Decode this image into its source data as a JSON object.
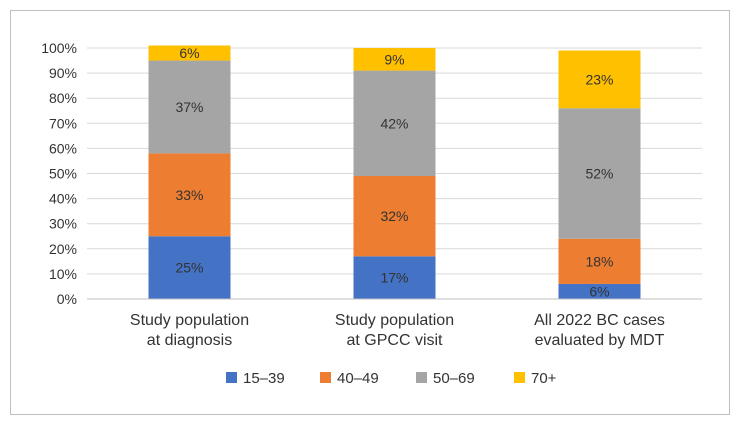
{
  "chart_data": {
    "type": "bar",
    "stacked": true,
    "percent_stacked": true,
    "title": "",
    "xlabel": "",
    "ylabel": "",
    "ylim": [
      0,
      100
    ],
    "grid": true,
    "yticks": [
      "0%",
      "10%",
      "20%",
      "30%",
      "40%",
      "50%",
      "60%",
      "70%",
      "80%",
      "90%",
      "100%"
    ],
    "categories": [
      [
        "Study population",
        "at diagnosis"
      ],
      [
        "Study population",
        "at GPCC visit"
      ],
      [
        "All 2022 BC cases",
        "evaluated by MDT"
      ]
    ],
    "series": [
      {
        "name": "15–39",
        "color": "#4472c4",
        "values": [
          25,
          17,
          6
        ],
        "labels": [
          "25%",
          "17%",
          "6%"
        ]
      },
      {
        "name": "40–49",
        "color": "#ed7d31",
        "values": [
          33,
          32,
          18
        ],
        "labels": [
          "33%",
          "32%",
          "18%"
        ]
      },
      {
        "name": "50–69",
        "color": "#a5a5a5",
        "values": [
          37,
          42,
          52
        ],
        "labels": [
          "37%",
          "42%",
          "52%"
        ]
      },
      {
        "name": "70+",
        "color": "#ffc000",
        "values": [
          6,
          9,
          23
        ],
        "labels": [
          "6%",
          "9%",
          "23%"
        ]
      }
    ],
    "legend_position": "bottom"
  }
}
